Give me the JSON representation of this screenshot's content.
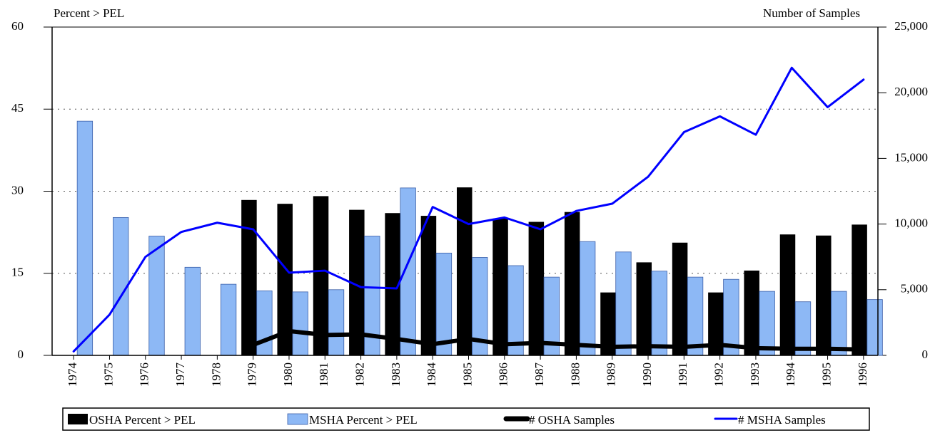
{
  "chart_data": {
    "type": "bar",
    "y_label": "Percent > PEL",
    "y2_label": "Number of Samples",
    "categories": [
      "1974",
      "1975",
      "1976",
      "1977",
      "1978",
      "1979",
      "1980",
      "1981",
      "1982",
      "1983",
      "1984",
      "1985",
      "1986",
      "1987",
      "1988",
      "1989",
      "1990",
      "1991",
      "1992",
      "1993",
      "1994",
      "1995",
      "1996"
    ],
    "ylim": [
      0,
      60
    ],
    "yticks": [
      0,
      15,
      30,
      45,
      60
    ],
    "y2lim": [
      0,
      25000
    ],
    "y2ticks": [
      0,
      {
        "value": 5000,
        "label": "5,000"
      },
      {
        "value": 10000,
        "label": "10,000"
      },
      {
        "value": 15000,
        "label": "15,000"
      },
      {
        "value": 20000,
        "label": "20,000"
      },
      {
        "value": 25000,
        "label": "25,000"
      }
    ],
    "grid": true,
    "legend": "bottom",
    "series": [
      {
        "name": "OSHA Percent > PEL",
        "type": "bar",
        "color": "#000000",
        "values": [
          null,
          null,
          null,
          null,
          null,
          28.4,
          27.7,
          29.1,
          26.6,
          26.0,
          25.5,
          30.7,
          25.0,
          24.4,
          26.2,
          11.5,
          17.0,
          20.6,
          11.5,
          15.5,
          22.1,
          21.9,
          23.9
        ]
      },
      {
        "name": "MSHA Percent > PEL",
        "type": "bar",
        "color": "#8db8f5",
        "values": [
          42.8,
          25.2,
          21.8,
          16.1,
          13.0,
          11.8,
          11.6,
          12.0,
          21.8,
          30.6,
          18.7,
          17.9,
          16.4,
          14.3,
          20.8,
          18.9,
          15.4,
          14.3,
          13.9,
          11.7,
          9.8,
          11.7,
          10.2
        ]
      },
      {
        "name": "# OSHA Samples",
        "type": "line",
        "axis": "y2",
        "color": "#000000",
        "values": [
          null,
          null,
          null,
          null,
          null,
          800,
          1850,
          1550,
          1600,
          1250,
          850,
          1250,
          850,
          950,
          800,
          650,
          700,
          650,
          800,
          550,
          500,
          500,
          450
        ]
      },
      {
        "name": "# MSHA Samples",
        "type": "line",
        "axis": "y2",
        "color": "#0000ff",
        "values": [
          300,
          3100,
          7500,
          9400,
          10100,
          9600,
          6300,
          6450,
          5200,
          5100,
          11300,
          10000,
          10500,
          9600,
          11000,
          11550,
          13600,
          17000,
          18200,
          16800,
          21900,
          18900,
          21000
        ]
      }
    ]
  }
}
